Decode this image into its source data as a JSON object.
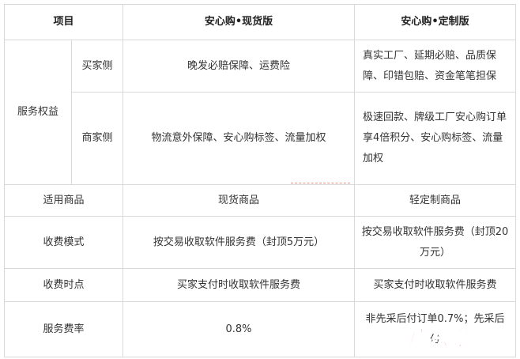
{
  "table": {
    "header": [
      "项目",
      "安心购•现货版",
      "安心购•定制版"
    ],
    "service_group": "服务权益",
    "service_rows": [
      [
        "买家侧",
        "晚发必赔保障、运费险",
        "真实工厂、延期必赔、品质保障、印错包赔、资金笔笔担保"
      ],
      [
        "商家侧",
        "物流意外保障、安心购标签、流量加权",
        "极速回款、牌级工厂安心购订单享4倍积分、安心购标签、流量加权"
      ]
    ],
    "rows": [
      [
        "适用商品",
        "现货商品",
        "轻定制商品"
      ],
      [
        "收费模式",
        "按交易收取软件服务费（封顶5万元）",
        "按交易收取软件服务费（封顶20万元）"
      ],
      [
        "收费时点",
        "买家支付时收取软件服务费",
        "买家支付时收取软件服务费"
      ],
      [
        "服务费率",
        "0.8%",
        "非先采后付订单0.7%；先采后付"
      ]
    ]
  },
  "watermark": "广东龙网"
}
